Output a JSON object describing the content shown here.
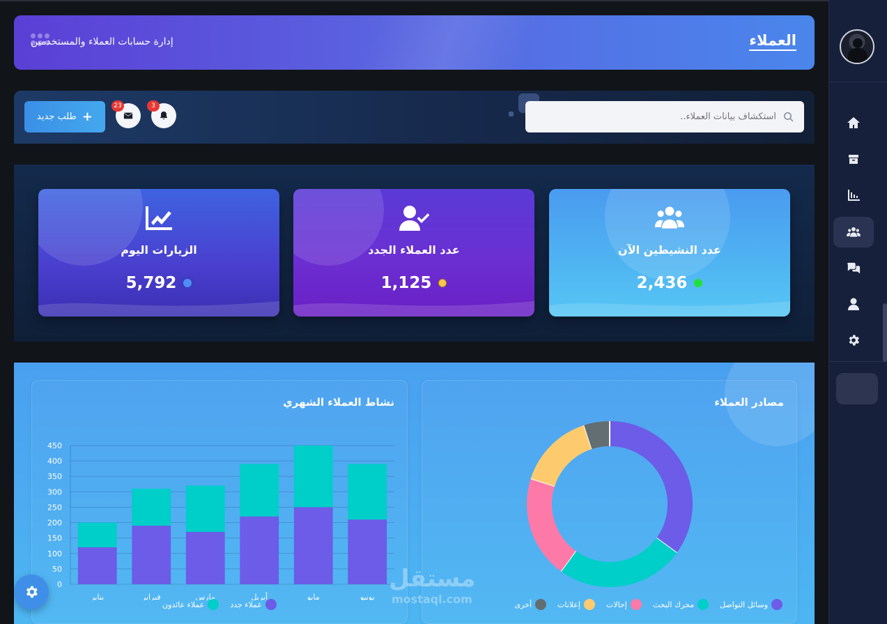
{
  "header": {
    "title": "العملاء",
    "subtitle": "إدارة حسابات العملاء والمستخدمين"
  },
  "toolbar": {
    "new_request_label": "طلب جديد",
    "messages_count": "23",
    "notifications_count": "3",
    "search_placeholder": "استكشاف بيانات العملاء.."
  },
  "stats": [
    {
      "label": "عدد النشيطين الآن",
      "value": "2,436",
      "icon": "users-icon",
      "dot_color": "#22e03a"
    },
    {
      "label": "عدد العملاء الجدد",
      "value": "1,125",
      "icon": "user-check-icon",
      "dot_color": "#f7c948"
    },
    {
      "label": "الزيارات اليوم",
      "value": "5,792",
      "icon": "chart-line-icon",
      "dot_color": "#4f8ef5"
    }
  ],
  "sidebar": {
    "items": [
      {
        "icon": "home-icon"
      },
      {
        "icon": "box-icon"
      },
      {
        "icon": "bar-chart-icon"
      },
      {
        "icon": "users-icon",
        "active": true
      },
      {
        "icon": "comments-icon"
      },
      {
        "icon": "user-icon"
      },
      {
        "icon": "gear-icon"
      }
    ]
  },
  "sources_panel": {
    "title": "مصادر العملاء",
    "legend": [
      {
        "label": "وسائل التواصل",
        "color": "#6c5ce7"
      },
      {
        "label": "محرك البحث",
        "color": "#00cec9"
      },
      {
        "label": "إحالات",
        "color": "#fd79a8"
      },
      {
        "label": "إعلانات",
        "color": "#fdcb6e"
      },
      {
        "label": "أخرى",
        "color": "#636e72"
      }
    ]
  },
  "activity_panel": {
    "title": "نشاط العملاء الشهري",
    "legend": [
      {
        "label": "عملاء جدد",
        "color": "#6c5ce7"
      },
      {
        "label": "عملاء عائدون",
        "color": "#00cec9"
      }
    ]
  },
  "chart_data": [
    {
      "type": "bar",
      "stacked": true,
      "title": "نشاط العملاء الشهري",
      "categories": [
        "يناير",
        "فبراير",
        "مارس",
        "أبريل",
        "مايو",
        "يونيو"
      ],
      "series": [
        {
          "name": "عملاء جدد",
          "values": [
            120,
            190,
            170,
            220,
            250,
            210
          ],
          "color": "#6c5ce7"
        },
        {
          "name": "عملاء عائدون",
          "values": [
            80,
            120,
            150,
            170,
            200,
            180
          ],
          "color": "#00cec9"
        }
      ],
      "ylim": [
        0,
        450
      ],
      "yticks": [
        0,
        50,
        100,
        150,
        200,
        250,
        300,
        350,
        400,
        450
      ],
      "grid": true
    },
    {
      "type": "pie",
      "donut": true,
      "title": "مصادر العملاء",
      "labels": [
        "وسائل التواصل",
        "محرك البحث",
        "إحالات",
        "إعلانات",
        "أخرى"
      ],
      "values": [
        35,
        25,
        20,
        15,
        5
      ],
      "colors": [
        "#6c5ce7",
        "#00cec9",
        "#fd79a8",
        "#fdcb6e",
        "#636e72"
      ]
    }
  ],
  "watermark": {
    "arabic": "مستقل",
    "latin": "mostaql.com"
  }
}
